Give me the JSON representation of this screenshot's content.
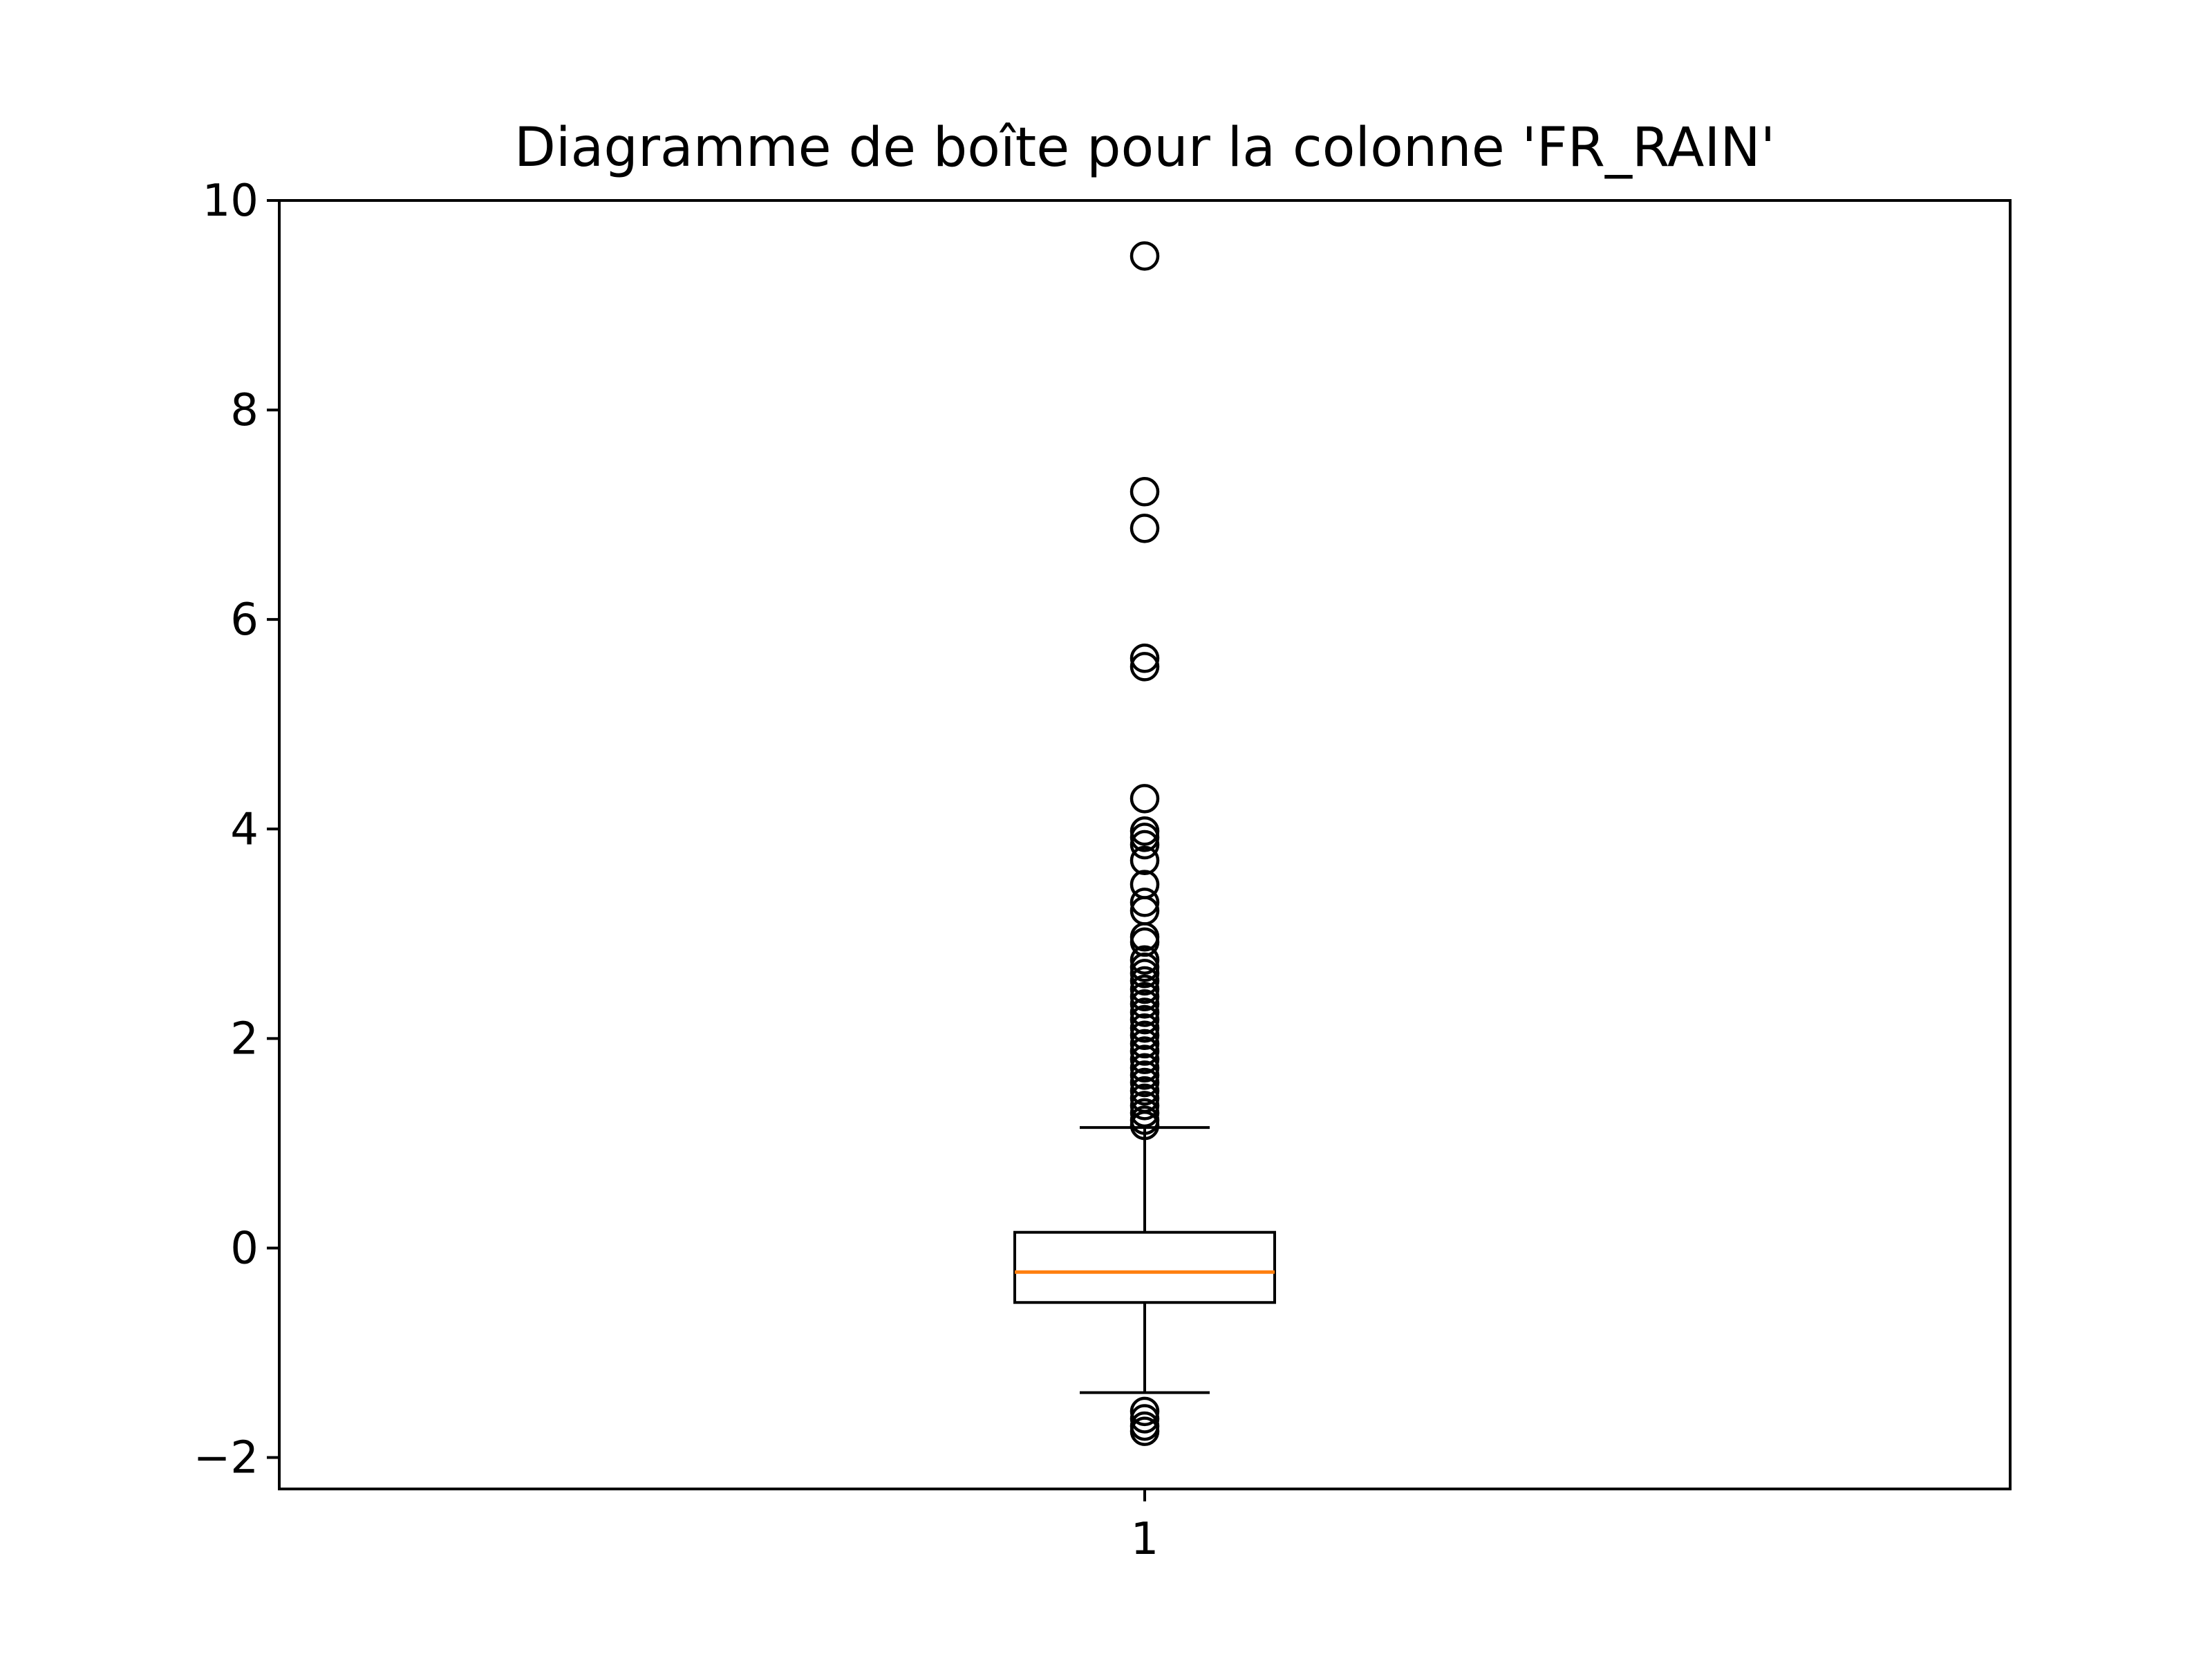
{
  "chart_data": {
    "type": "box",
    "title": "Diagramme de boîte pour la colonne 'FR_RAIN'",
    "xlabel": "",
    "ylabel": "",
    "categories": [
      "1"
    ],
    "ylim": [
      -2.3,
      10.0
    ],
    "yticks": [
      -2,
      0,
      2,
      4,
      6,
      8,
      10
    ],
    "ytick_labels": [
      "−2",
      "0",
      "2",
      "4",
      "6",
      "8",
      "10"
    ],
    "grid": false,
    "legend": "none",
    "boxes": [
      {
        "name": "1",
        "q1": -0.52,
        "median": -0.23,
        "q3": 0.15,
        "whisker_low": -1.38,
        "whisker_high": 1.15,
        "outliers": [
          9.47,
          7.22,
          6.87,
          5.63,
          5.55,
          4.29,
          3.98,
          3.92,
          3.85,
          3.7,
          3.47,
          3.3,
          3.22,
          2.97,
          2.92,
          2.75,
          2.68,
          2.62,
          2.55,
          2.47,
          2.4,
          2.33,
          2.25,
          2.18,
          2.1,
          2.03,
          1.95,
          1.88,
          1.8,
          1.72,
          1.65,
          1.58,
          1.5,
          1.43,
          1.36,
          1.29,
          1.22,
          1.17,
          -1.56,
          -1.63,
          -1.7,
          -1.75
        ]
      }
    ],
    "colors": {
      "box": "#000000",
      "median": "#ff7f0e",
      "outlier_edge": "#000000"
    }
  }
}
